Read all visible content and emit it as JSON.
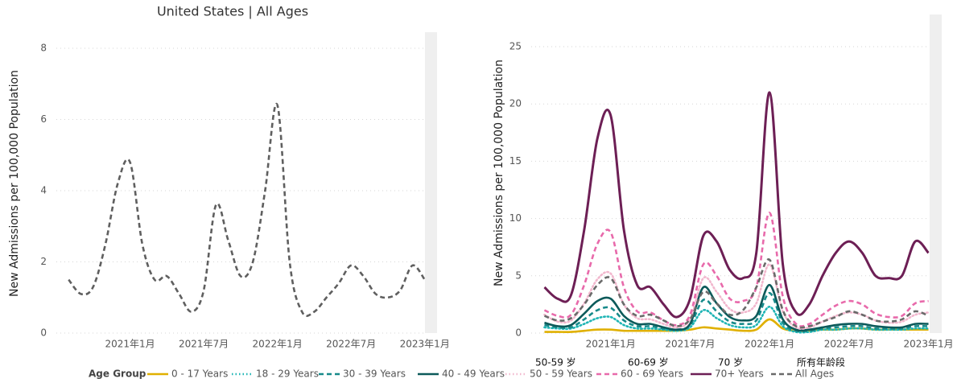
{
  "title": "United States | All Ages",
  "chart_data": [
    {
      "type": "line",
      "y_label": "New Admissions per 100,000 Population",
      "x": [
        "2020-08",
        "2020-09",
        "2020-10",
        "2020-11",
        "2020-12",
        "2021-01",
        "2021-02",
        "2021-03",
        "2021-04",
        "2021-05",
        "2021-06",
        "2021-07",
        "2021-08",
        "2021-09",
        "2021-10",
        "2021-11",
        "2021-12",
        "2022-01",
        "2022-02",
        "2022-03",
        "2022-04",
        "2022-05",
        "2022-06",
        "2022-07",
        "2022-08",
        "2022-09",
        "2022-10",
        "2022-11",
        "2022-12",
        "2023-01"
      ],
      "values": [
        1.5,
        1.1,
        1.3,
        2.5,
        4.2,
        4.8,
        2.5,
        1.5,
        1.6,
        1.1,
        0.6,
        1.2,
        3.6,
        2.6,
        1.6,
        2.0,
        4.0,
        6.4,
        2.0,
        0.6,
        0.6,
        1.0,
        1.4,
        1.9,
        1.6,
        1.1,
        1.0,
        1.2,
        1.9,
        1.5
      ],
      "color": "#5f5f5f",
      "style": "dashed",
      "xlim": [
        "2020-07",
        "2023-02"
      ],
      "xticks": [
        {
          "value": "2021-01",
          "label": "2021年1月"
        },
        {
          "value": "2021-07",
          "label": "2021年7月"
        },
        {
          "value": "2022-01",
          "label": "2022年1月"
        },
        {
          "value": "2022-07",
          "label": "2022年7月"
        },
        {
          "value": "2023-01",
          "label": "2023年1月"
        }
      ],
      "ylim": [
        0,
        8
      ],
      "yticks": [
        0,
        2,
        4,
        6,
        8
      ],
      "grid": true
    },
    {
      "type": "line",
      "y_label": "New Admissions per 100,000 Population",
      "x": [
        "2020-08",
        "2020-09",
        "2020-10",
        "2020-11",
        "2020-12",
        "2021-01",
        "2021-02",
        "2021-03",
        "2021-04",
        "2021-05",
        "2021-06",
        "2021-07",
        "2021-08",
        "2021-09",
        "2021-10",
        "2021-11",
        "2021-12",
        "2022-01",
        "2022-02",
        "2022-03",
        "2022-04",
        "2022-05",
        "2022-06",
        "2022-07",
        "2022-08",
        "2022-09",
        "2022-10",
        "2022-11",
        "2022-12",
        "2023-01"
      ],
      "series": [
        {
          "name": "0 - 17 Years",
          "color": "#e0b000",
          "style": "solid",
          "values": [
            0.1,
            0.1,
            0.1,
            0.2,
            0.3,
            0.3,
            0.2,
            0.2,
            0.2,
            0.2,
            0.2,
            0.3,
            0.5,
            0.4,
            0.3,
            0.2,
            0.3,
            1.2,
            0.4,
            0.2,
            0.2,
            0.3,
            0.3,
            0.4,
            0.4,
            0.3,
            0.3,
            0.3,
            0.3,
            0.3
          ]
        },
        {
          "name": "18 - 29 Years",
          "color": "#1fb5b5",
          "style": "dotted",
          "values": [
            0.5,
            0.4,
            0.4,
            0.8,
            1.3,
            1.4,
            0.7,
            0.4,
            0.4,
            0.3,
            0.2,
            0.5,
            2.0,
            1.3,
            0.7,
            0.5,
            0.7,
            2.3,
            0.6,
            0.1,
            0.1,
            0.3,
            0.3,
            0.4,
            0.4,
            0.3,
            0.3,
            0.3,
            0.4,
            0.4
          ]
        },
        {
          "name": "30 - 39 Years",
          "color": "#178a8a",
          "style": "dashed",
          "values": [
            0.7,
            0.5,
            0.5,
            1.2,
            2.0,
            2.2,
            1.1,
            0.6,
            0.6,
            0.4,
            0.3,
            0.7,
            2.9,
            1.9,
            1.0,
            0.8,
            1.1,
            3.5,
            0.9,
            0.2,
            0.2,
            0.4,
            0.5,
            0.6,
            0.6,
            0.4,
            0.4,
            0.4,
            0.6,
            0.6
          ]
        },
        {
          "name": "40 - 49 Years",
          "color": "#0c5a5a",
          "style": "solid",
          "values": [
            0.9,
            0.6,
            0.7,
            1.7,
            2.8,
            3.0,
            1.5,
            0.8,
            0.8,
            0.5,
            0.3,
            0.8,
            4.0,
            2.6,
            1.4,
            1.1,
            1.5,
            4.2,
            1.2,
            0.3,
            0.3,
            0.5,
            0.7,
            0.8,
            0.8,
            0.6,
            0.5,
            0.5,
            0.8,
            0.8
          ]
        },
        {
          "name": "50 - 59 Years",
          "color": "#f2b8ce",
          "style": "dotted",
          "values": [
            1.6,
            1.0,
            1.1,
            2.6,
            4.7,
            5.2,
            2.5,
            1.3,
            1.2,
            0.8,
            0.5,
            1.2,
            4.8,
            3.6,
            2.1,
            1.8,
            2.6,
            6.0,
            1.9,
            0.5,
            0.5,
            1.0,
            1.5,
            1.8,
            1.6,
            1.1,
            0.9,
            1.0,
            1.6,
            1.8
          ]
        },
        {
          "name": "60 - 69 Years",
          "color": "#e86aab",
          "style": "dashed",
          "values": [
            2.0,
            1.5,
            1.6,
            4.2,
            7.8,
            8.8,
            4.0,
            1.9,
            1.8,
            1.1,
            0.7,
            1.6,
            6.0,
            5.0,
            3.0,
            2.8,
            4.0,
            10.5,
            3.2,
            0.8,
            0.8,
            1.6,
            2.4,
            2.8,
            2.5,
            1.7,
            1.4,
            1.5,
            2.6,
            2.8
          ]
        },
        {
          "name": "70+ Years",
          "color": "#6d1f55",
          "style": "solid",
          "values": [
            4.0,
            3.0,
            3.3,
            9.0,
            17.0,
            19.0,
            9.0,
            4.2,
            4.0,
            2.5,
            1.4,
            3.0,
            8.5,
            8.0,
            5.5,
            4.8,
            7.0,
            21.0,
            6.0,
            1.8,
            2.5,
            5.0,
            7.0,
            8.0,
            7.0,
            5.0,
            4.8,
            5.0,
            8.0,
            7.0
          ]
        },
        {
          "name": "All Ages",
          "color": "#6a6a6a",
          "style": "dashed",
          "values": [
            1.5,
            1.1,
            1.3,
            2.5,
            4.2,
            4.8,
            2.5,
            1.5,
            1.6,
            1.1,
            0.6,
            1.2,
            3.6,
            2.6,
            1.6,
            2.0,
            4.0,
            6.4,
            2.0,
            0.6,
            0.6,
            1.0,
            1.4,
            1.9,
            1.6,
            1.1,
            1.0,
            1.2,
            1.9,
            1.5
          ]
        }
      ],
      "xlim": [
        "2020-07",
        "2023-02"
      ],
      "xticks": [
        {
          "value": "2021-01",
          "label": "2021年1月"
        },
        {
          "value": "2021-07",
          "label": "2021年7月"
        },
        {
          "value": "2022-01",
          "label": "2022年1月"
        },
        {
          "value": "2022-07",
          "label": "2022年7月"
        },
        {
          "value": "2023-01",
          "label": "2023年1月"
        }
      ],
      "ylim": [
        0,
        25
      ],
      "yticks": [
        0,
        5,
        10,
        15,
        20,
        25
      ],
      "grid": true
    }
  ],
  "legend": {
    "title": "Age Group"
  },
  "annotations": [
    "50-59 岁",
    "60-69 岁",
    "70 岁",
    "所有年龄段"
  ]
}
